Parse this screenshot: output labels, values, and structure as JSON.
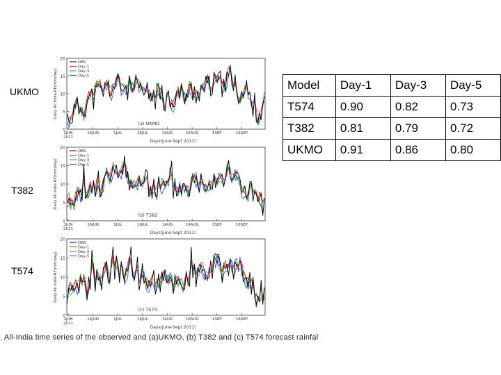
{
  "side_labels": {
    "ukmo": "UKMO",
    "t382": "T382",
    "t574": "T574"
  },
  "caption": ". All-India time series of the observed and (a)UKMO, (b) T382 and (c) T574 forecast rainfal",
  "table": {
    "headers": [
      "Model",
      "Day-1",
      "Day-3",
      "Day-5"
    ],
    "rows": [
      {
        "model": "T574",
        "values": [
          "0.90",
          "0.82",
          "0.73"
        ]
      },
      {
        "model": "T382",
        "values": [
          "0.81",
          "0.79",
          "0.72"
        ]
      },
      {
        "model": "UKMO",
        "values": [
          "0.91",
          "0.86",
          "0.80"
        ]
      }
    ]
  },
  "colors": {
    "OBS": "#000000",
    "Day-1": "#e31a1c",
    "Day-3": "#2ca02c",
    "Day-5": "#1f3fd0"
  },
  "chart_data": [
    {
      "type": "line",
      "panel_label": "(a) UKMO",
      "ylabel": "Daily All India RF(mm/day)",
      "xlabel": "Days(June-Sept 2011)",
      "xticks": [
        "1JUN\n2011",
        "16JUN",
        "1JUL",
        "16JUL",
        "1AUG",
        "16AUG",
        "1SEP",
        "16SEP"
      ],
      "ylim": [
        0,
        20
      ],
      "yticks": [
        0,
        5,
        10,
        15,
        20
      ],
      "legend": [
        "OBS",
        "Day-1",
        "Day-3",
        "Day-5"
      ],
      "seed": 11
    },
    {
      "type": "line",
      "panel_label": "(b) T382",
      "ylabel": "Daily All India RF(mm/day)",
      "xlabel": "Days(June-Sept 2011)",
      "xticks": [
        "1JUN\n2011",
        "16JUN",
        "1JUL",
        "16JUL",
        "1AUG",
        "16AUG",
        "1SEP",
        "16SEP"
      ],
      "ylim": [
        0,
        20
      ],
      "yticks": [
        0,
        5,
        10,
        15,
        20
      ],
      "legend": [
        "OBS",
        "Day-1",
        "Day-3",
        "Day-5"
      ],
      "seed": 23
    },
    {
      "type": "line",
      "panel_label": "(c) T574",
      "ylabel": "Daily All India RF(mm/day)",
      "xlabel": "Days(June-Sept 2011)",
      "xticks": [
        "1JUN\n2011",
        "16JUN",
        "1JUL",
        "16JUL",
        "1AUG",
        "16AUG",
        "1SEP",
        "16SEP"
      ],
      "ylim": [
        0,
        20
      ],
      "yticks": [
        0,
        5,
        10,
        15,
        20
      ],
      "legend": [
        "OBS",
        "Day-1",
        "Day-3",
        "Day-5"
      ],
      "seed": 37
    }
  ]
}
